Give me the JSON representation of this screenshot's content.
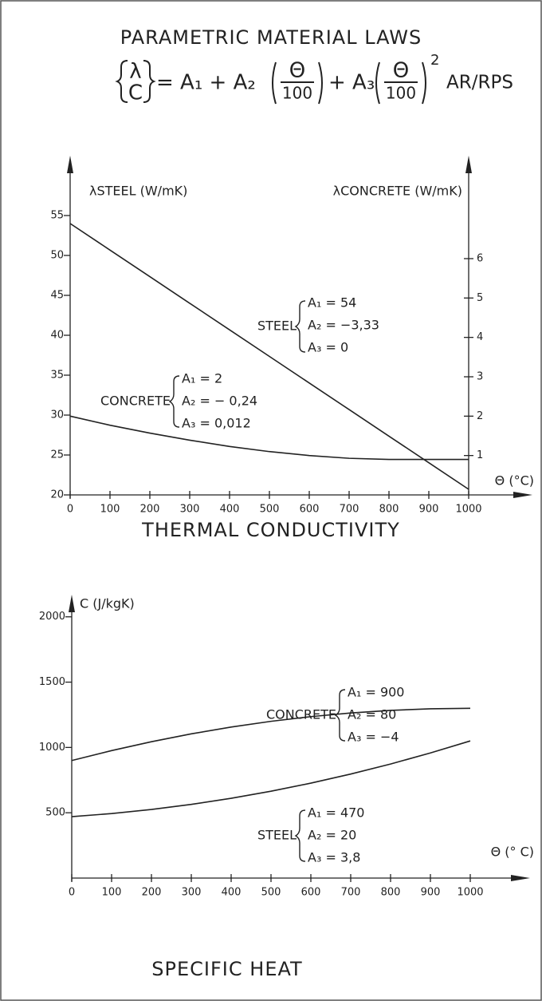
{
  "header": {
    "title": "PARAMETRIC MATERIAL LAWS",
    "formula": {
      "lhs_top": "λ",
      "lhs_bottom": "C",
      "term_1": "= A₁ + A₂",
      "term_2": "+ A₃",
      "fraction_num": "Θ",
      "fraction_den": "100",
      "exponent": "2",
      "source": "AR/RPS"
    }
  },
  "chart_data": [
    {
      "type": "line",
      "title": "THERMAL CONDUCTIVITY",
      "y_label": "λSTEEL (W/mK)",
      "y2_label": "λCONCRETE (W/mK)",
      "x_label": "Θ (°C)",
      "x": [
        0,
        100,
        200,
        300,
        400,
        500,
        600,
        700,
        800,
        900,
        1000
      ],
      "xlim": [
        0,
        1160
      ],
      "xticks": [
        0,
        100,
        200,
        300,
        400,
        500,
        600,
        700,
        800,
        900,
        1000
      ],
      "ylim": [
        20,
        57
      ],
      "yticks": [
        20,
        25,
        30,
        35,
        40,
        45,
        50,
        55
      ],
      "y2lim": [
        0,
        7.5
      ],
      "y2ticks": [
        1,
        2,
        3,
        4,
        5,
        6
      ],
      "series": [
        {
          "name": "STEEL",
          "color": "#222222",
          "values": [
            54,
            50.67,
            47.34,
            44.01,
            40.68,
            37.35,
            34.02,
            30.69,
            27.36,
            24.03,
            20.7
          ]
        },
        {
          "name": "CONCRETE",
          "color": "#222222",
          "axis": "y2",
          "values": [
            2,
            1.77,
            1.57,
            1.39,
            1.23,
            1.1,
            1.0,
            0.93,
            0.9,
            0.9,
            0.9
          ]
        }
      ],
      "annotations": [
        {
          "label": "STEEL",
          "lines": [
            "A₁ = 54",
            "A₂ = −3,33",
            "A₃ = 0"
          ]
        },
        {
          "label": "CONCRETE",
          "lines": [
            "A₁ = 2",
            "A₂ = − 0,24",
            "A₃ = 0,012"
          ]
        }
      ]
    },
    {
      "type": "line",
      "title": "SPECIFIC HEAT",
      "y_label": "C (J/kgK)",
      "x_label": "Θ (° C)",
      "x": [
        0,
        100,
        200,
        300,
        400,
        500,
        600,
        700,
        800,
        900,
        1000
      ],
      "xlim": [
        0,
        1150
      ],
      "xticks": [
        0,
        100,
        200,
        300,
        400,
        500,
        600,
        700,
        800,
        900,
        1000
      ],
      "ylim": [
        0,
        2200
      ],
      "yticks": [
        500,
        1000,
        1500,
        2000
      ],
      "series": [
        {
          "name": "CONCRETE",
          "color": "#222222",
          "values": [
            900,
            976,
            1044,
            1104,
            1156,
            1200,
            1236,
            1264,
            1284,
            1296,
            1300
          ]
        },
        {
          "name": "STEEL",
          "color": "#222222",
          "values": [
            470,
            493.8,
            525.2,
            564.2,
            610.8,
            665,
            726.8,
            796.2,
            873.2,
            957.8,
            1050
          ]
        }
      ],
      "annotations": [
        {
          "label": "CONCRETE",
          "lines": [
            "A₁ = 900",
            "A₂ = 80",
            "A₃ = −4"
          ]
        },
        {
          "label": "STEEL",
          "lines": [
            "A₁ = 470",
            "A₂ = 20",
            "A₃ = 3,8"
          ]
        }
      ]
    }
  ]
}
